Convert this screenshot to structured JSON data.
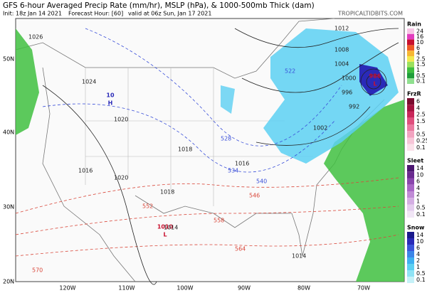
{
  "header": {
    "title": "GFS 6-hour Averaged Precip Rate (mm/hr), MSLP (hPa), & 1000-500mb Thick (dam)",
    "init": "Init: 18z Jan 14 2021",
    "forecast_hour": "Forecast Hour: [60]",
    "valid": "valid at 06z Sun, Jan 17 2021",
    "credit": "TROPICALTIDBITS.COM"
  },
  "map": {
    "lat_labels": [
      "50N",
      "40N",
      "30N",
      "20N"
    ],
    "lon_labels": [
      "120W",
      "110W",
      "100W",
      "90W",
      "80W",
      "70W"
    ],
    "pressure_centers": [
      {
        "letter": "H",
        "value": "10"
      },
      {
        "letter": "L",
        "value": "1010"
      },
      {
        "letter": "L",
        "value": "986"
      }
    ],
    "isobar_labels": [
      "1026",
      "1024",
      "1020",
      "1018",
      "1016",
      "1014",
      "1012",
      "1008",
      "1004",
      "1000",
      "996",
      "992",
      "1002",
      "1020",
      "1016",
      "1018",
      "1014"
    ],
    "thickness_labels": [
      "522",
      "528",
      "534",
      "540",
      "546",
      "552",
      "558",
      "564",
      "570"
    ]
  },
  "colorbar": [
    {
      "name": "Rain",
      "levels": [
        {
          "label": "24",
          "color": "#f7c6e6"
        },
        {
          "label": "16",
          "color": "#e23dbf"
        },
        {
          "label": "10",
          "color": "#c8102e"
        },
        {
          "label": "6",
          "color": "#ee5a24"
        },
        {
          "label": "4",
          "color": "#f7b733"
        },
        {
          "label": "2.5",
          "color": "#f2e94e"
        },
        {
          "label": "1.5",
          "color": "#9be15d"
        },
        {
          "label": "1",
          "color": "#3fbf3f"
        },
        {
          "label": "0.5",
          "color": "#1f9e3a"
        },
        {
          "label": "0.1",
          "color": "#8fe08f"
        }
      ]
    },
    {
      "name": "FrzR",
      "levels": [
        {
          "label": "6",
          "color": "#7a0a2e"
        },
        {
          "label": "4",
          "color": "#a3123f"
        },
        {
          "label": "2.5",
          "color": "#c9275a"
        },
        {
          "label": "1.5",
          "color": "#e04f7e"
        },
        {
          "label": "1",
          "color": "#ea7aa0"
        },
        {
          "label": "0.5",
          "color": "#f2a3c0"
        },
        {
          "label": "0.25",
          "color": "#f7c6d8"
        },
        {
          "label": "0.1",
          "color": "#fbe1ea"
        }
      ]
    },
    {
      "name": "Sleet",
      "levels": [
        {
          "label": "14",
          "color": "#4b1670"
        },
        {
          "label": "10",
          "color": "#6a2a8f"
        },
        {
          "label": "6",
          "color": "#8a45ad"
        },
        {
          "label": "4",
          "color": "#a766c5"
        },
        {
          "label": "2",
          "color": "#c08bd6"
        },
        {
          "label": "1",
          "color": "#d4aee3"
        },
        {
          "label": "0.5",
          "color": "#e4cdee"
        },
        {
          "label": "0.1",
          "color": "#f1e6f6"
        }
      ]
    },
    {
      "name": "Snow",
      "levels": [
        {
          "label": "14",
          "color": "#1a1a8c"
        },
        {
          "label": "10",
          "color": "#2a2ab8"
        },
        {
          "label": "6",
          "color": "#3b55d9"
        },
        {
          "label": "4",
          "color": "#3c86e8"
        },
        {
          "label": "2",
          "color": "#3fb0f0"
        },
        {
          "label": "1",
          "color": "#5cd0f2"
        },
        {
          "label": "0.5",
          "color": "#8fe3f5"
        },
        {
          "label": "0.1",
          "color": "#c5f1f8"
        }
      ]
    }
  ]
}
